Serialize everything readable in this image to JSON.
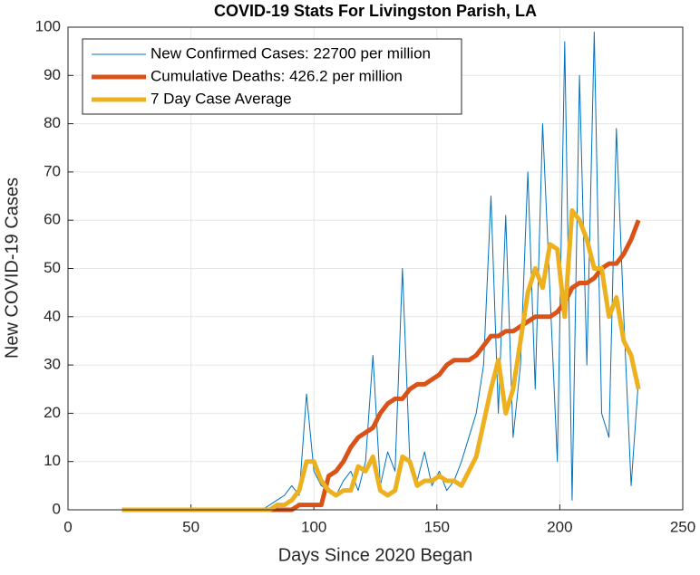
{
  "chart_data": {
    "type": "line",
    "title": "COVID-19 Stats For Livingston Parish, LA",
    "x_label": "Days Since 2020 Began",
    "y_label": "New COVID-19 Cases",
    "xlim": [
      0,
      250
    ],
    "xticks": [
      0,
      50,
      100,
      150,
      200,
      250
    ],
    "ylim": [
      0,
      100
    ],
    "yticks": [
      0,
      10,
      20,
      30,
      40,
      50,
      60,
      70,
      80,
      90,
      100
    ],
    "grid": true,
    "legend": "top-left",
    "x": [
      22,
      25,
      28,
      31,
      34,
      37,
      40,
      43,
      46,
      49,
      52,
      55,
      58,
      61,
      64,
      67,
      70,
      73,
      76,
      79,
      82,
      85,
      88,
      91,
      94,
      97,
      100,
      103,
      106,
      109,
      112,
      115,
      118,
      121,
      124,
      127,
      130,
      133,
      136,
      139,
      142,
      145,
      148,
      151,
      154,
      157,
      160,
      163,
      166,
      169,
      172,
      175,
      178,
      181,
      184,
      187,
      190,
      193,
      196,
      199,
      202,
      205,
      208,
      211,
      214,
      217,
      220,
      223,
      226,
      229,
      232
    ],
    "series": [
      {
        "name": "New Confirmed Cases: 22700 per million",
        "color": "#0072bd",
        "width": 1,
        "values": [
          0,
          0,
          0,
          0,
          0,
          0,
          0,
          0,
          0,
          0,
          0,
          0,
          0,
          0,
          0,
          0,
          0,
          0,
          0,
          0,
          1,
          2,
          3,
          5,
          3,
          24,
          8,
          5,
          4,
          3,
          6,
          8,
          4,
          10,
          32,
          5,
          12,
          8,
          50,
          10,
          6,
          12,
          5,
          8,
          4,
          6,
          10,
          15,
          20,
          30,
          65,
          20,
          61,
          15,
          30,
          70,
          25,
          80,
          45,
          10,
          97,
          2,
          90,
          30,
          99,
          20,
          15,
          79,
          40,
          5,
          27
        ]
      },
      {
        "name": "Cumulative Deaths: 426.2 per million",
        "color": "#d95319",
        "width": 5,
        "values": [
          0,
          0,
          0,
          0,
          0,
          0,
          0,
          0,
          0,
          0,
          0,
          0,
          0,
          0,
          0,
          0,
          0,
          0,
          0,
          0,
          0,
          0,
          0,
          0,
          1,
          1,
          1,
          1,
          7,
          8,
          10,
          13,
          15,
          16,
          17,
          20,
          22,
          23,
          23,
          25,
          26,
          26,
          27,
          28,
          30,
          31,
          31,
          31,
          32,
          34,
          36,
          36,
          37,
          37,
          38,
          39,
          40,
          40,
          40,
          41,
          43,
          46,
          47,
          47,
          48,
          50,
          51,
          51,
          53,
          56,
          60
        ]
      },
      {
        "name": "7 Day Case Average",
        "color": "#edb120",
        "width": 5,
        "values": [
          0,
          0,
          0,
          0,
          0,
          0,
          0,
          0,
          0,
          0,
          0,
          0,
          0,
          0,
          0,
          0,
          0,
          0,
          0,
          0,
          0,
          1,
          1,
          2,
          4,
          10,
          10,
          6,
          4,
          3,
          4,
          4,
          9,
          8,
          11,
          4,
          3,
          4,
          11,
          10,
          5,
          6,
          6,
          7,
          6,
          6,
          5,
          8,
          11,
          18,
          25,
          31,
          20,
          25,
          35,
          45,
          50,
          46,
          55,
          54,
          40,
          62,
          60,
          56,
          50,
          50,
          40,
          44,
          35,
          32,
          25
        ]
      }
    ]
  }
}
